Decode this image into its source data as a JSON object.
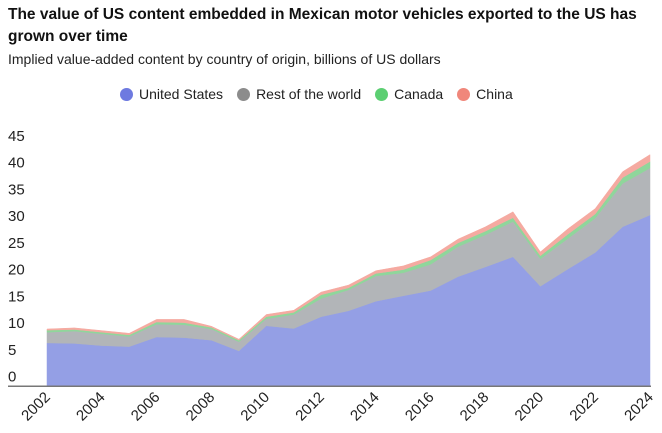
{
  "chart_data": {
    "type": "area",
    "stacked": true,
    "title": "The value of US content embedded in Mexican motor vehicles exported to the US has grown over time",
    "subtitle": "Implied value-added content by country of origin, billions of US dollars",
    "xlabel": "",
    "ylabel": "",
    "ylim": [
      0,
      45
    ],
    "yticks": [
      "0",
      "5",
      "10",
      "15",
      "20",
      "25",
      "30",
      "35",
      "40",
      "45"
    ],
    "xticks": [
      "2002",
      "2004",
      "2006",
      "2008",
      "2010",
      "2012",
      "2014",
      "2016",
      "2018",
      "2020",
      "2022",
      "2024"
    ],
    "grid": false,
    "legend_position": "top",
    "x": [
      2002,
      2003,
      2004,
      2005,
      2006,
      2007,
      2008,
      2009,
      2010,
      2011,
      2012,
      2013,
      2014,
      2015,
      2016,
      2017,
      2018,
      2019,
      2020,
      2021,
      2022,
      2023,
      2024
    ],
    "series": [
      {
        "name": "United States",
        "color": "#949fe5",
        "legend_color": "#6e7ae0",
        "values": [
          8.0,
          7.9,
          7.5,
          7.3,
          9.1,
          9.0,
          8.5,
          6.5,
          11.2,
          10.7,
          12.9,
          14.0,
          15.8,
          16.8,
          17.8,
          20.4,
          22.2,
          24.1,
          18.6,
          21.8,
          24.9,
          29.7,
          31.9
        ]
      },
      {
        "name": "Rest of the world",
        "color": "#b2b5b8",
        "legend_color": "#8c8c8c",
        "values": [
          2.0,
          2.3,
          2.2,
          1.9,
          2.4,
          2.4,
          2.1,
          1.7,
          1.3,
          2.6,
          3.4,
          3.9,
          4.7,
          4.3,
          4.9,
          5.6,
          6.0,
          6.6,
          5.1,
          5.7,
          6.4,
          8.1,
          8.8
        ]
      },
      {
        "name": "Canada",
        "color": "#8fd69b",
        "legend_color": "#5ccf72",
        "values": [
          0.4,
          0.3,
          0.3,
          0.3,
          0.4,
          0.4,
          0.3,
          0.3,
          0.4,
          0.4,
          0.7,
          0.4,
          0.5,
          0.6,
          0.8,
          0.7,
          0.7,
          0.7,
          0.6,
          0.8,
          0.8,
          1.1,
          1.2
        ]
      },
      {
        "name": "China",
        "color": "#f5aaa1",
        "legend_color": "#f0877b",
        "values": [
          0.2,
          0.3,
          0.3,
          0.3,
          0.5,
          0.6,
          0.2,
          0.2,
          0.4,
          0.4,
          0.5,
          0.5,
          0.5,
          0.7,
          0.6,
          0.7,
          0.8,
          1.1,
          0.7,
          1.0,
          1.0,
          1.1,
          1.3
        ]
      }
    ]
  }
}
